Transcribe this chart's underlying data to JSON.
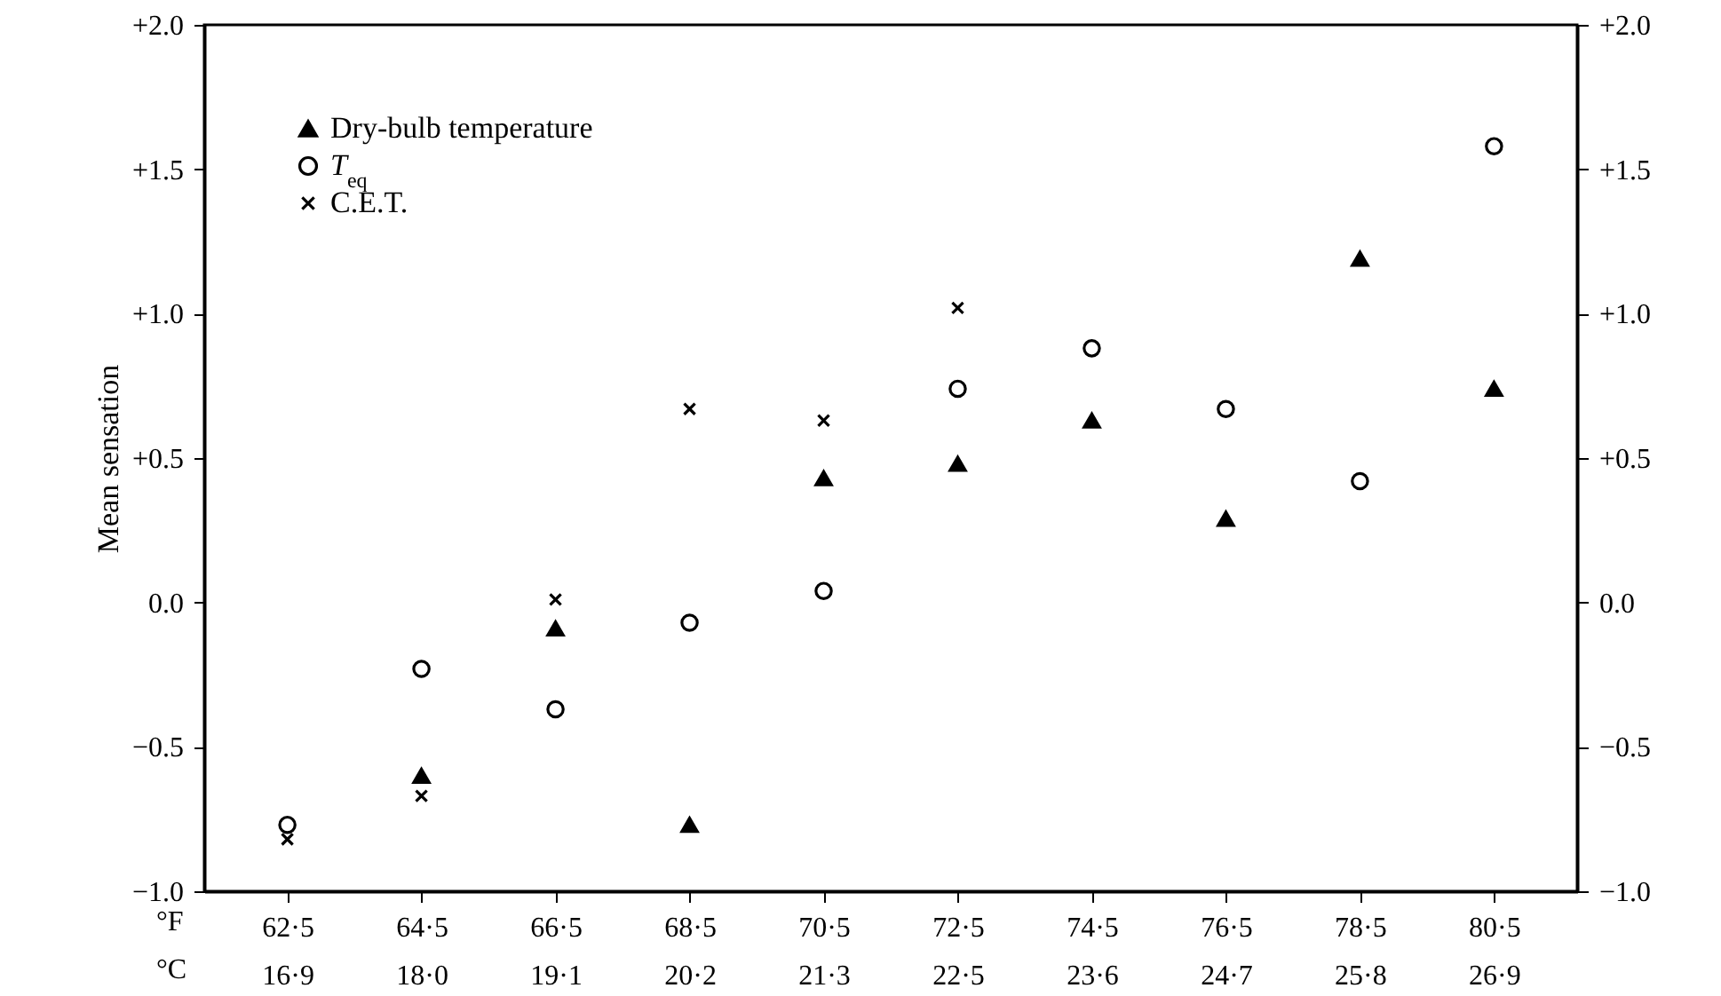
{
  "chart_data": {
    "type": "scatter",
    "ylabel": "Mean sensation",
    "categories": [
      "62·5\n16·9",
      "64·5\n18·0",
      "66·5\n19·1",
      "68·5\n20·2",
      "70·5\n21·3",
      "72·5\n22·5",
      "74·5\n23·6",
      "76·5\n24·7",
      "78·5\n25·8",
      "80·5\n26·9"
    ],
    "ylim": [
      -1,
      2
    ],
    "yticks": [
      {
        "value": -1,
        "label": "−1.0"
      },
      {
        "value": -0.5,
        "label": "−0.5"
      },
      {
        "value": 0,
        "label": "0.0"
      },
      {
        "value": 0.5,
        "label": "+0.5"
      },
      {
        "value": 1,
        "label": "+1.0"
      },
      {
        "value": 1.5,
        "label": "+1.5"
      },
      {
        "value": 2,
        "label": "+2.0"
      }
    ],
    "y2lim": [
      -1,
      2
    ],
    "y2ticks": [
      {
        "value": -1,
        "label": "−1.0"
      },
      {
        "value": -0.5,
        "label": "−0.5"
      },
      {
        "value": 0,
        "label": "0.0"
      },
      {
        "value": 0.5,
        "label": "+0.5"
      },
      {
        "value": 1,
        "label": "+1.0"
      },
      {
        "value": 1.5,
        "label": "+1.5"
      },
      {
        "value": 2,
        "label": "+2.0"
      }
    ],
    "series": [
      {
        "name": "Dry-bulb temperature",
        "color": "#000000",
        "marker": "triangle",
        "values": [
          null,
          -0.6,
          -0.09,
          -0.77,
          0.43,
          0.48,
          0.63,
          0.29,
          1.19,
          0.74
        ]
      },
      {
        "name": "T$_{eq}$",
        "color": "#000000",
        "marker": "circle",
        "values": [
          -0.77,
          -0.23,
          -0.37,
          -0.07,
          0.04,
          0.74,
          0.88,
          0.67,
          0.42,
          1.58
        ]
      },
      {
        "name": "C.E.T.",
        "color": "#000000",
        "marker": "cross",
        "values": [
          -0.82,
          -0.67,
          0.01,
          0.67,
          0.63,
          1.02,
          null,
          null,
          null,
          null
        ]
      }
    ],
    "annotations": [
      "°F",
      "°C"
    ],
    "legend": "top left",
    "grid": false
  }
}
